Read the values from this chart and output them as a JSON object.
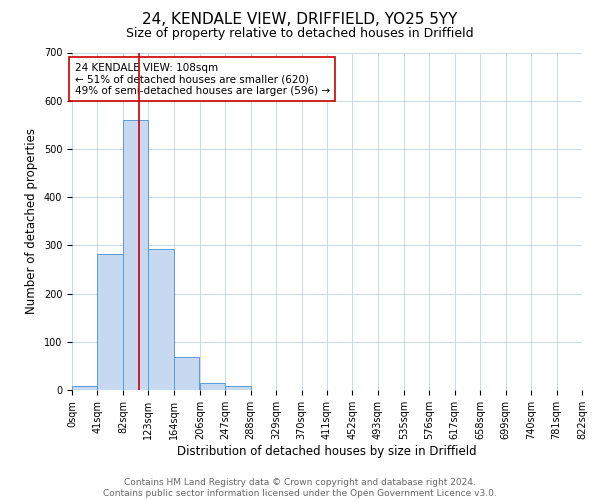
{
  "title": "24, KENDALE VIEW, DRIFFIELD, YO25 5YY",
  "subtitle": "Size of property relative to detached houses in Driffield",
  "xlabel": "Distribution of detached houses by size in Driffield",
  "ylabel": "Number of detached properties",
  "bin_edges": [
    0,
    41,
    82,
    123,
    164,
    206,
    247,
    288,
    329,
    370,
    411,
    452,
    493,
    535,
    576,
    617,
    658,
    699,
    740,
    781,
    822
  ],
  "bar_heights": [
    8,
    282,
    560,
    292,
    68,
    14,
    9,
    0,
    0,
    0,
    0,
    0,
    0,
    0,
    0,
    0,
    0,
    0,
    0,
    0
  ],
  "bar_color": "#c6d9f0",
  "bar_edgecolor": "#5b9bd5",
  "grid_color": "#c8d8e8",
  "background_color": "#ffffff",
  "property_size": 108,
  "red_line_color": "#cc0000",
  "annotation_text": "24 KENDALE VIEW: 108sqm\n← 51% of detached houses are smaller (620)\n49% of semi-detached houses are larger (596) →",
  "annotation_box_edgecolor": "#cc0000",
  "annotation_box_facecolor": "#ffffff",
  "ylim": [
    0,
    700
  ],
  "yticks": [
    0,
    100,
    200,
    300,
    400,
    500,
    600,
    700
  ],
  "footer_line1": "Contains HM Land Registry data © Crown copyright and database right 2024.",
  "footer_line2": "Contains public sector information licensed under the Open Government Licence v3.0.",
  "title_fontsize": 11,
  "subtitle_fontsize": 9,
  "tick_label_fontsize": 7,
  "ylabel_fontsize": 8.5,
  "xlabel_fontsize": 8.5,
  "annotation_fontsize": 7.5,
  "footer_fontsize": 6.5
}
